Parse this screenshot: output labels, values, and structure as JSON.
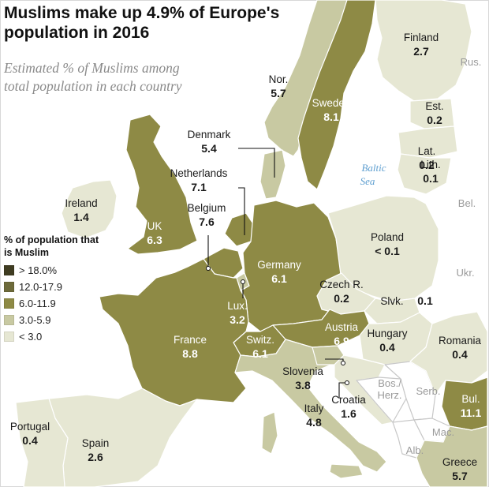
{
  "title": "Muslims make up 4.9% of Europe's population in 2016",
  "subtitle": "Estimated % of Muslims among total population in each country",
  "legend": {
    "title": "% of population that is Muslim",
    "items": [
      {
        "label": "> 18.0%",
        "color": "#3f3c21"
      },
      {
        "label": "12.0-17.9",
        "color": "#6d6a3a"
      },
      {
        "label": "6.0-11.9",
        "color": "#8e8a45"
      },
      {
        "label": "3.0-5.9",
        "color": "#c8c9a2"
      },
      {
        "label": "< 3.0",
        "color": "#e6e7d3"
      }
    ]
  },
  "colors": {
    "sea": "#ffffff",
    "border": "#ffffff",
    "label_dark": "#1a1a1a",
    "label_light": "#ffffff",
    "neighbor_label": "#9a9a9a",
    "sea_label": "#5f9fd0"
  },
  "countries": [
    {
      "name": "Finland",
      "value": "2.7",
      "bin": 4
    },
    {
      "name": "Nor.",
      "value": "5.7",
      "bin": 3
    },
    {
      "name": "Sweden",
      "value": "8.1",
      "bin": 2
    },
    {
      "name": "Est.",
      "value": "0.2",
      "bin": 4
    },
    {
      "name": "Lat.",
      "value": "0.2",
      "bin": 4
    },
    {
      "name": "Lith.",
      "value": "0.1",
      "bin": 4
    },
    {
      "name": "Denmark",
      "value": "5.4",
      "bin": 3
    },
    {
      "name": "Netherlands",
      "value": "7.1",
      "bin": 2
    },
    {
      "name": "Belgium",
      "value": "7.6",
      "bin": 2
    },
    {
      "name": "Ireland",
      "value": "1.4",
      "bin": 4
    },
    {
      "name": "UK",
      "value": "6.3",
      "bin": 2
    },
    {
      "name": "Poland",
      "value": "< 0.1",
      "bin": 4
    },
    {
      "name": "Germany",
      "value": "6.1",
      "bin": 2
    },
    {
      "name": "Czech R.",
      "value": "0.2",
      "bin": 4
    },
    {
      "name": "Slvk.",
      "value": "0.1",
      "bin": 4
    },
    {
      "name": "Lux.",
      "value": "3.2",
      "bin": 3
    },
    {
      "name": "France",
      "value": "8.8",
      "bin": 2
    },
    {
      "name": "Switz.",
      "value": "6.1",
      "bin": 2
    },
    {
      "name": "Austria",
      "value": "6.9",
      "bin": 2
    },
    {
      "name": "Hungary",
      "value": "0.4",
      "bin": 4
    },
    {
      "name": "Romania",
      "value": "0.4",
      "bin": 4
    },
    {
      "name": "Slovenia",
      "value": "3.8",
      "bin": 3
    },
    {
      "name": "Croatia",
      "value": "1.6",
      "bin": 4
    },
    {
      "name": "Italy",
      "value": "4.8",
      "bin": 3
    },
    {
      "name": "Bul.",
      "value": "11.1",
      "bin": 2
    },
    {
      "name": "Portugal",
      "value": "0.4",
      "bin": 4
    },
    {
      "name": "Spain",
      "value": "2.6",
      "bin": 4
    },
    {
      "name": "Greece",
      "value": "5.7",
      "bin": 3
    }
  ],
  "neighbors": [
    "Rus.",
    "Bel.",
    "Ukr.",
    "Bos./Herz.",
    "Serb.",
    "Mac.",
    "Alb."
  ],
  "sea_label": "Baltic Sea"
}
